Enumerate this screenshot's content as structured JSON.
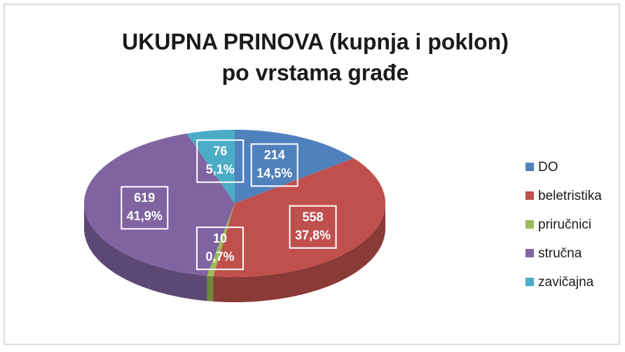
{
  "chart_data": {
    "type": "pie",
    "title": [
      "UKUPNA PRINOVA (kupnja i poklon)",
      "po vrstama građe"
    ],
    "categories": [
      "DO",
      "beletristika",
      "priručnici",
      "stručna",
      "zavičajna"
    ],
    "values": [
      214,
      558,
      10,
      619,
      76
    ],
    "percentages": [
      14.5,
      37.8,
      0.7,
      41.9,
      5.1
    ],
    "percentage_labels": [
      "14,5%",
      "37,8%",
      "0,7%",
      "41,9%",
      "5,1%"
    ],
    "colors": [
      "#4f81bd",
      "#c0504d",
      "#9bbb59",
      "#8064a2",
      "#4bacc6"
    ],
    "legend": "right"
  }
}
